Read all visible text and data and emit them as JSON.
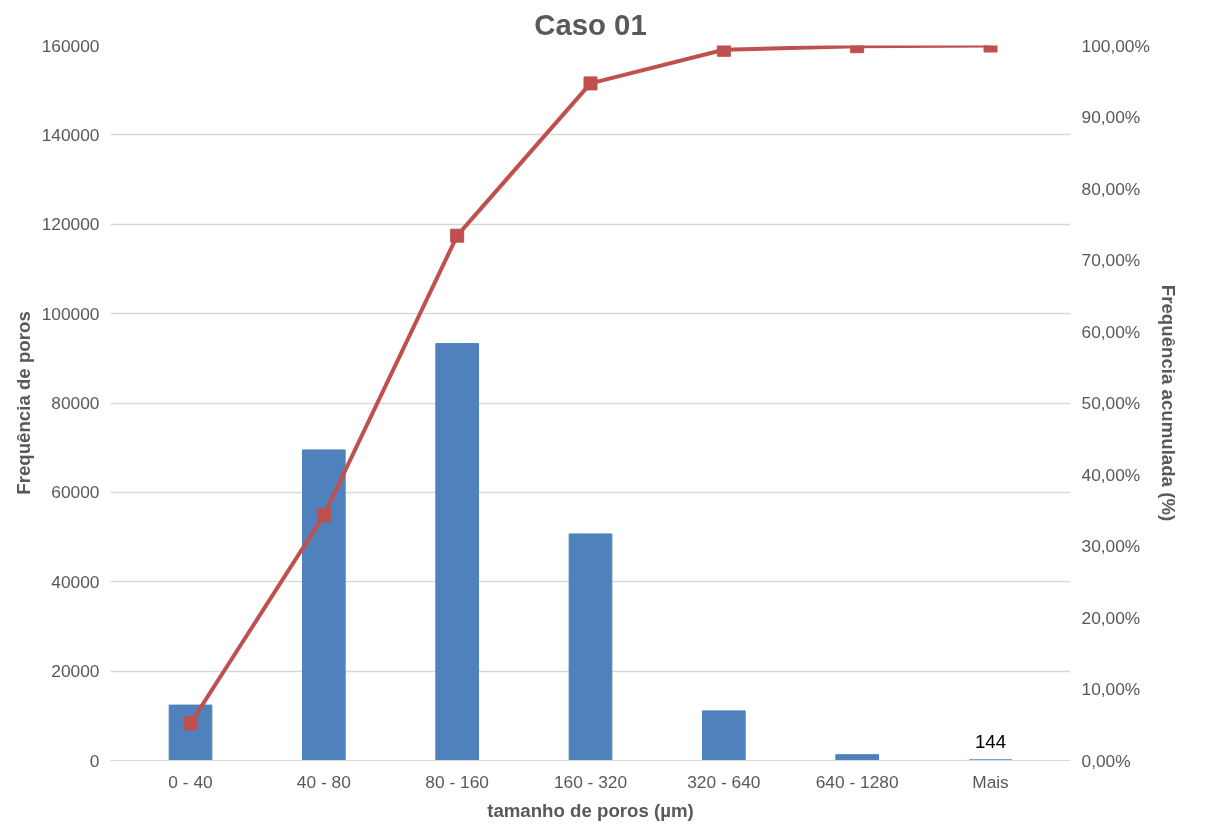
{
  "chart_data": {
    "type": "bar",
    "title": "Caso 01",
    "xlabel": "tamanho de poros (µm)",
    "ylabel": "Frequência de poros",
    "y2label": "Frequência acumulada (%)",
    "categories": [
      "0 - 40",
      "40 - 80",
      "80 - 160",
      "160 - 320",
      "320 - 640",
      "640 - 1280",
      "Mais"
    ],
    "series": [
      {
        "color": "#4f81bd",
        "values": [
          12400,
          69500,
          93300,
          50700,
          11100,
          1300,
          144
        ],
        "value_labels": [
          null,
          null,
          null,
          null,
          null,
          null,
          "144"
        ]
      },
      {
        "type": "line",
        "axis": "y2",
        "color": "#c0504d",
        "marker": "square",
        "values": [
          5.2,
          34.3,
          73.4,
          94.7,
          99.4,
          99.9,
          100
        ]
      }
    ],
    "ylim": [
      0,
      160000
    ],
    "yticks": [
      0,
      20000,
      40000,
      60000,
      80000,
      100000,
      120000,
      140000,
      160000
    ],
    "y2lim": [
      0,
      100
    ],
    "y2ticks": [
      {
        "value": 0,
        "label": "0,00%"
      },
      {
        "value": 10,
        "label": "10,00%"
      },
      {
        "value": 20,
        "label": "20,00%"
      },
      {
        "value": 30,
        "label": "30,00%"
      },
      {
        "value": 40,
        "label": "40,00%"
      },
      {
        "value": 50,
        "label": "50,00%"
      },
      {
        "value": 60,
        "label": "60,00%"
      },
      {
        "value": 70,
        "label": "70,00%"
      },
      {
        "value": 80,
        "label": "80,00%"
      },
      {
        "value": 90,
        "label": "90,00%"
      },
      {
        "value": 100,
        "label": "100,00%"
      }
    ],
    "grid": "y"
  }
}
